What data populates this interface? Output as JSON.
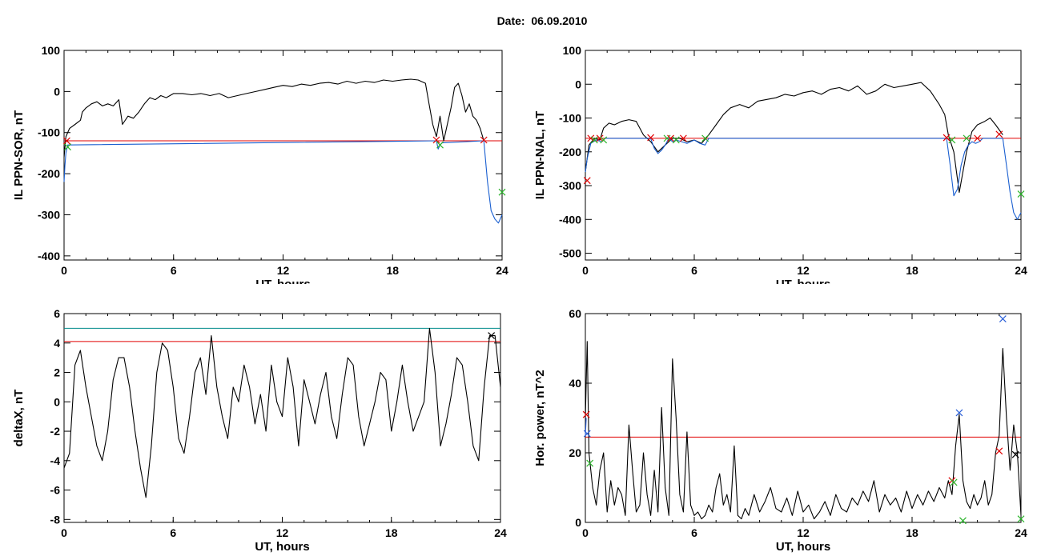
{
  "page": {
    "date_label": "Date:  06.09.2010"
  },
  "colors": {
    "trace": "#000000",
    "threshold": "#e00000",
    "cyan_line": "#008b8b",
    "blue_trace": "#1a5fd0",
    "green_mark": "#2cb52c",
    "blue_mark": "#2a5fd8"
  },
  "chart_data": [
    {
      "id": "sor",
      "type": "line",
      "title": "",
      "xlabel": "UT, hours",
      "ylabel": "IL PPN-SOR, nT",
      "xlim": [
        0,
        24
      ],
      "ylim": [
        -410,
        100
      ],
      "xticks": [
        0,
        6,
        12,
        18,
        24
      ],
      "yticks": [
        100,
        0,
        -100,
        -200,
        -300,
        -400
      ],
      "grid": false,
      "thresholds": [
        {
          "y": -120,
          "color": "#e00000"
        }
      ],
      "series": [
        {
          "color": "#000000",
          "x": [
            0,
            0.1,
            0.3,
            0.6,
            0.9,
            1.0,
            1.2,
            1.5,
            1.8,
            2.1,
            2.4,
            2.7,
            3.0,
            3.2,
            3.5,
            3.8,
            4.1,
            4.4,
            4.7,
            5.0,
            5.3,
            5.6,
            6.0,
            6.5,
            7.0,
            7.5,
            8.0,
            8.5,
            9.0,
            9.5,
            10.0,
            10.5,
            11.0,
            11.5,
            12.0,
            12.5,
            13.0,
            13.5,
            14.0,
            14.5,
            15.0,
            15.5,
            16.0,
            16.5,
            17.0,
            17.5,
            18.0,
            18.5,
            19.0,
            19.4,
            19.8,
            20.0,
            20.2,
            20.4,
            20.6,
            20.8,
            21.0,
            21.2,
            21.4,
            21.6,
            21.8,
            22.0,
            22.2,
            22.4,
            22.6,
            22.8,
            23.0
          ],
          "y": [
            -160,
            -110,
            -90,
            -80,
            -70,
            -50,
            -40,
            -30,
            -25,
            -35,
            -30,
            -35,
            -20,
            -80,
            -60,
            -65,
            -50,
            -30,
            -15,
            -20,
            -10,
            -15,
            -5,
            -5,
            -8,
            -5,
            -10,
            -5,
            -15,
            -10,
            -5,
            0,
            5,
            10,
            15,
            12,
            18,
            15,
            20,
            22,
            18,
            25,
            20,
            25,
            22,
            28,
            25,
            28,
            30,
            28,
            20,
            -30,
            -80,
            -110,
            -60,
            -120,
            -80,
            -40,
            10,
            20,
            -10,
            -50,
            -30,
            -60,
            -70,
            -90,
            -120
          ]
        },
        {
          "color": "#1a5fd0",
          "x": [
            0,
            0.05,
            0.1,
            0.2,
            20.4,
            20.5,
            20.6,
            20.7,
            23.0,
            23.2,
            23.4,
            23.6,
            23.8,
            24.0
          ],
          "y": [
            -220,
            -180,
            -150,
            -130,
            -120,
            -140,
            -130,
            -125,
            -120,
            -220,
            -290,
            -310,
            -320,
            -300
          ]
        }
      ],
      "markers": [
        {
          "x": 0.15,
          "y": -120,
          "color": "#e00000"
        },
        {
          "x": 0.2,
          "y": -135,
          "color": "#2cb52c"
        },
        {
          "x": 20.4,
          "y": -118,
          "color": "#e00000"
        },
        {
          "x": 20.6,
          "y": -130,
          "color": "#2cb52c"
        },
        {
          "x": 23.0,
          "y": -118,
          "color": "#e00000"
        },
        {
          "x": 24.0,
          "y": -245,
          "color": "#2cb52c"
        }
      ]
    },
    {
      "id": "nal",
      "type": "line",
      "title": "",
      "xlabel": "UT, hours",
      "ylabel": "IL PPN-NAL, nT",
      "xlim": [
        0,
        24
      ],
      "ylim": [
        -520,
        100
      ],
      "xticks": [
        0,
        6,
        12,
        18,
        24
      ],
      "yticks": [
        100,
        0,
        -100,
        -200,
        -300,
        -400,
        -500
      ],
      "grid": false,
      "thresholds": [
        {
          "y": -160,
          "color": "#e00000"
        }
      ],
      "series": [
        {
          "color": "#000000",
          "x": [
            0,
            0.2,
            0.5,
            0.8,
            1.0,
            1.3,
            1.6,
            2.0,
            2.4,
            2.8,
            3.2,
            3.6,
            4.0,
            4.4,
            4.8,
            5.2,
            5.6,
            6.0,
            6.4,
            6.8,
            7.2,
            7.6,
            8.0,
            8.5,
            9.0,
            9.5,
            10.0,
            10.5,
            11.0,
            11.5,
            12.0,
            12.5,
            13.0,
            13.5,
            14.0,
            14.5,
            15.0,
            15.5,
            16.0,
            16.5,
            17.0,
            17.5,
            18.0,
            18.5,
            19.0,
            19.5,
            19.8,
            20.0,
            20.3,
            20.6,
            21.0,
            21.3,
            21.6,
            22.0,
            22.3,
            22.6,
            23.0
          ],
          "y": [
            -260,
            -180,
            -160,
            -165,
            -130,
            -115,
            -120,
            -110,
            -105,
            -110,
            -150,
            -170,
            -200,
            -180,
            -160,
            -160,
            -170,
            -165,
            -175,
            -150,
            -120,
            -90,
            -70,
            -60,
            -70,
            -50,
            -45,
            -40,
            -30,
            -35,
            -25,
            -20,
            -30,
            -15,
            -10,
            -20,
            -5,
            -30,
            -20,
            0,
            -10,
            -5,
            0,
            5,
            -20,
            -60,
            -90,
            -150,
            -200,
            -320,
            -200,
            -140,
            -120,
            -110,
            -100,
            -120,
            -150
          ]
        },
        {
          "color": "#1a5fd0",
          "x": [
            0,
            0.1,
            0.3,
            0.6,
            0.9,
            1.1,
            3.6,
            3.8,
            4.0,
            4.2,
            4.4,
            4.6,
            4.8,
            5.0,
            5.3,
            5.6,
            6.0,
            6.3,
            6.6,
            6.8,
            19.9,
            20.1,
            20.3,
            20.5,
            20.7,
            20.9,
            21.1,
            21.3,
            21.5,
            21.7,
            21.9,
            23.0,
            23.2,
            23.4,
            23.6,
            23.8,
            24.0
          ],
          "y": [
            -260,
            -220,
            -175,
            -165,
            -170,
            -160,
            -160,
            -190,
            -205,
            -195,
            -180,
            -160,
            -170,
            -165,
            -170,
            -175,
            -165,
            -175,
            -180,
            -160,
            -160,
            -240,
            -330,
            -310,
            -240,
            -200,
            -180,
            -170,
            -175,
            -170,
            -160,
            -160,
            -240,
            -320,
            -380,
            -400,
            -380
          ]
        }
      ],
      "markers": [
        {
          "x": 0.1,
          "y": -285,
          "color": "#e00000"
        },
        {
          "x": 0.3,
          "y": -160,
          "color": "#e00000"
        },
        {
          "x": 0.5,
          "y": -165,
          "color": "#2cb52c"
        },
        {
          "x": 0.8,
          "y": -160,
          "color": "#e00000"
        },
        {
          "x": 1.0,
          "y": -165,
          "color": "#2cb52c"
        },
        {
          "x": 3.6,
          "y": -158,
          "color": "#e00000"
        },
        {
          "x": 4.5,
          "y": -160,
          "color": "#2cb52c"
        },
        {
          "x": 4.7,
          "y": -160,
          "color": "#e00000"
        },
        {
          "x": 5.0,
          "y": -165,
          "color": "#2cb52c"
        },
        {
          "x": 5.4,
          "y": -160,
          "color": "#e00000"
        },
        {
          "x": 6.6,
          "y": -160,
          "color": "#2cb52c"
        },
        {
          "x": 19.9,
          "y": -158,
          "color": "#e00000"
        },
        {
          "x": 20.2,
          "y": -165,
          "color": "#2cb52c"
        },
        {
          "x": 21.0,
          "y": -160,
          "color": "#2cb52c"
        },
        {
          "x": 21.6,
          "y": -160,
          "color": "#e00000"
        },
        {
          "x": 22.8,
          "y": -148,
          "color": "#e00000"
        },
        {
          "x": 24.0,
          "y": -325,
          "color": "#2cb52c"
        }
      ]
    },
    {
      "id": "deltax",
      "type": "line",
      "title": "",
      "xlabel": "UT, hours",
      "ylabel": "deltaX, nT",
      "xlim": [
        0,
        24
      ],
      "ylim": [
        -8.2,
        6
      ],
      "xticks": [
        0,
        6,
        12,
        18,
        24
      ],
      "yticks": [
        6,
        4,
        2,
        0,
        -2,
        -4,
        -6,
        -8
      ],
      "grid": false,
      "thresholds": [
        {
          "y": 5.0,
          "color": "#008b8b"
        },
        {
          "y": 4.1,
          "color": "#e00000"
        }
      ],
      "series": [
        {
          "color": "#000000",
          "x": [
            0,
            0.3,
            0.6,
            0.9,
            1.2,
            1.5,
            1.8,
            2.1,
            2.4,
            2.7,
            3.0,
            3.3,
            3.6,
            3.9,
            4.2,
            4.5,
            4.8,
            5.1,
            5.4,
            5.7,
            6.0,
            6.3,
            6.6,
            6.9,
            7.2,
            7.5,
            7.8,
            8.1,
            8.4,
            8.7,
            9.0,
            9.3,
            9.6,
            9.9,
            10.2,
            10.5,
            10.8,
            11.1,
            11.4,
            11.7,
            12.0,
            12.3,
            12.6,
            12.9,
            13.2,
            13.5,
            13.8,
            14.1,
            14.4,
            14.7,
            15.0,
            15.3,
            15.6,
            15.9,
            16.2,
            16.5,
            16.8,
            17.1,
            17.4,
            17.7,
            18.0,
            18.3,
            18.6,
            18.9,
            19.2,
            19.5,
            19.8,
            20.1,
            20.4,
            20.7,
            21.0,
            21.3,
            21.6,
            21.9,
            22.2,
            22.5,
            22.8,
            23.1,
            23.4,
            23.7,
            24.0
          ],
          "y": [
            -4.5,
            -3.5,
            2.5,
            3.5,
            1.0,
            -1.0,
            -3.0,
            -4.0,
            -2.0,
            1.5,
            3.0,
            3.0,
            1.0,
            -2.0,
            -4.5,
            -6.5,
            -3.0,
            2.0,
            4.0,
            3.5,
            1.0,
            -2.5,
            -3.5,
            -1.0,
            2.0,
            3.0,
            0.5,
            4.5,
            1.0,
            -1.0,
            -2.5,
            1.0,
            0.0,
            2.5,
            1.0,
            -1.5,
            0.5,
            -2.0,
            2.5,
            0.0,
            -1.0,
            3.0,
            1.0,
            -3.0,
            1.5,
            0.0,
            -1.5,
            0.5,
            2.0,
            -1.0,
            -2.5,
            0.5,
            3.0,
            2.5,
            -1.0,
            -3.0,
            -1.5,
            0.0,
            2.0,
            1.5,
            -2.0,
            0.0,
            2.5,
            0.0,
            -2.0,
            -1.0,
            0.0,
            5.0,
            2.0,
            -3.0,
            -1.5,
            0.5,
            3.0,
            2.5,
            0.0,
            -3.0,
            -4.0,
            1.0,
            4.5,
            4.5,
            1.0
          ]
        }
      ],
      "markers": [
        {
          "x": 23.5,
          "y": 4.5,
          "color": "#000000"
        }
      ]
    },
    {
      "id": "power",
      "type": "line",
      "title": "",
      "xlabel": "UT, hours",
      "ylabel": "Hor. power, nT^2",
      "xlim": [
        0,
        24
      ],
      "ylim": [
        0,
        60
      ],
      "xticks": [
        0,
        6,
        12,
        18,
        24
      ],
      "yticks": [
        0,
        20,
        40,
        60
      ],
      "grid": false,
      "thresholds": [
        {
          "y": 24.5,
          "color": "#e00000"
        }
      ],
      "series": [
        {
          "color": "#000000",
          "x": [
            0,
            0.1,
            0.2,
            0.4,
            0.6,
            0.8,
            1.0,
            1.2,
            1.4,
            1.6,
            1.8,
            2.0,
            2.2,
            2.4,
            2.6,
            2.8,
            3.0,
            3.2,
            3.4,
            3.6,
            3.8,
            4.0,
            4.2,
            4.4,
            4.6,
            4.8,
            5.0,
            5.2,
            5.4,
            5.6,
            5.8,
            6.0,
            6.2,
            6.4,
            6.6,
            6.8,
            7.0,
            7.2,
            7.4,
            7.6,
            7.8,
            8.0,
            8.2,
            8.4,
            8.6,
            8.8,
            9.0,
            9.3,
            9.6,
            9.9,
            10.2,
            10.5,
            10.8,
            11.1,
            11.4,
            11.7,
            12.0,
            12.3,
            12.6,
            12.9,
            13.2,
            13.5,
            13.8,
            14.1,
            14.4,
            14.7,
            15.0,
            15.3,
            15.6,
            15.9,
            16.2,
            16.5,
            16.8,
            17.1,
            17.4,
            17.7,
            18.0,
            18.3,
            18.6,
            18.9,
            19.2,
            19.5,
            19.8,
            20.0,
            20.2,
            20.4,
            20.6,
            20.8,
            21.0,
            21.2,
            21.4,
            21.6,
            21.8,
            22.0,
            22.2,
            22.4,
            22.6,
            22.8,
            23.0,
            23.2,
            23.4,
            23.6,
            23.8,
            24.0
          ],
          "y": [
            30,
            52,
            20,
            10,
            5,
            15,
            20,
            3,
            12,
            5,
            10,
            8,
            2,
            28,
            15,
            3,
            5,
            20,
            8,
            2,
            15,
            3,
            33,
            10,
            2,
            47,
            30,
            8,
            3,
            26,
            5,
            2,
            3,
            1,
            2,
            5,
            3,
            10,
            14,
            5,
            8,
            3,
            22,
            2,
            1,
            4,
            2,
            8,
            3,
            6,
            10,
            4,
            3,
            7,
            2,
            9,
            3,
            5,
            1,
            3,
            6,
            2,
            8,
            4,
            3,
            7,
            5,
            9,
            6,
            12,
            3,
            8,
            5,
            7,
            3,
            9,
            4,
            8,
            5,
            9,
            6,
            10,
            7,
            12,
            8,
            22,
            31,
            12,
            6,
            4,
            8,
            5,
            7,
            12,
            5,
            8,
            20,
            25,
            50,
            30,
            15,
            28,
            20,
            2
          ]
        },
        {
          "color": "#2a5fd8",
          "x": [
            0,
            0.05
          ],
          "y": [
            25,
            30
          ]
        }
      ],
      "markers": [
        {
          "x": 0.05,
          "y": 31,
          "color": "#e00000"
        },
        {
          "x": 0.1,
          "y": 25.5,
          "color": "#2a5fd8"
        },
        {
          "x": 0.25,
          "y": 17,
          "color": "#2cb52c"
        },
        {
          "x": 20.2,
          "y": 12,
          "color": "#e00000"
        },
        {
          "x": 20.3,
          "y": 11.5,
          "color": "#2cb52c"
        },
        {
          "x": 20.6,
          "y": 31.5,
          "color": "#2a5fd8"
        },
        {
          "x": 20.8,
          "y": 0.5,
          "color": "#2cb52c"
        },
        {
          "x": 22.8,
          "y": 20.5,
          "color": "#e00000"
        },
        {
          "x": 23.0,
          "y": 58.5,
          "color": "#2a5fd8"
        },
        {
          "x": 23.7,
          "y": 19.5,
          "color": "#000000"
        },
        {
          "x": 24.0,
          "y": 1,
          "color": "#2cb52c"
        }
      ]
    }
  ]
}
